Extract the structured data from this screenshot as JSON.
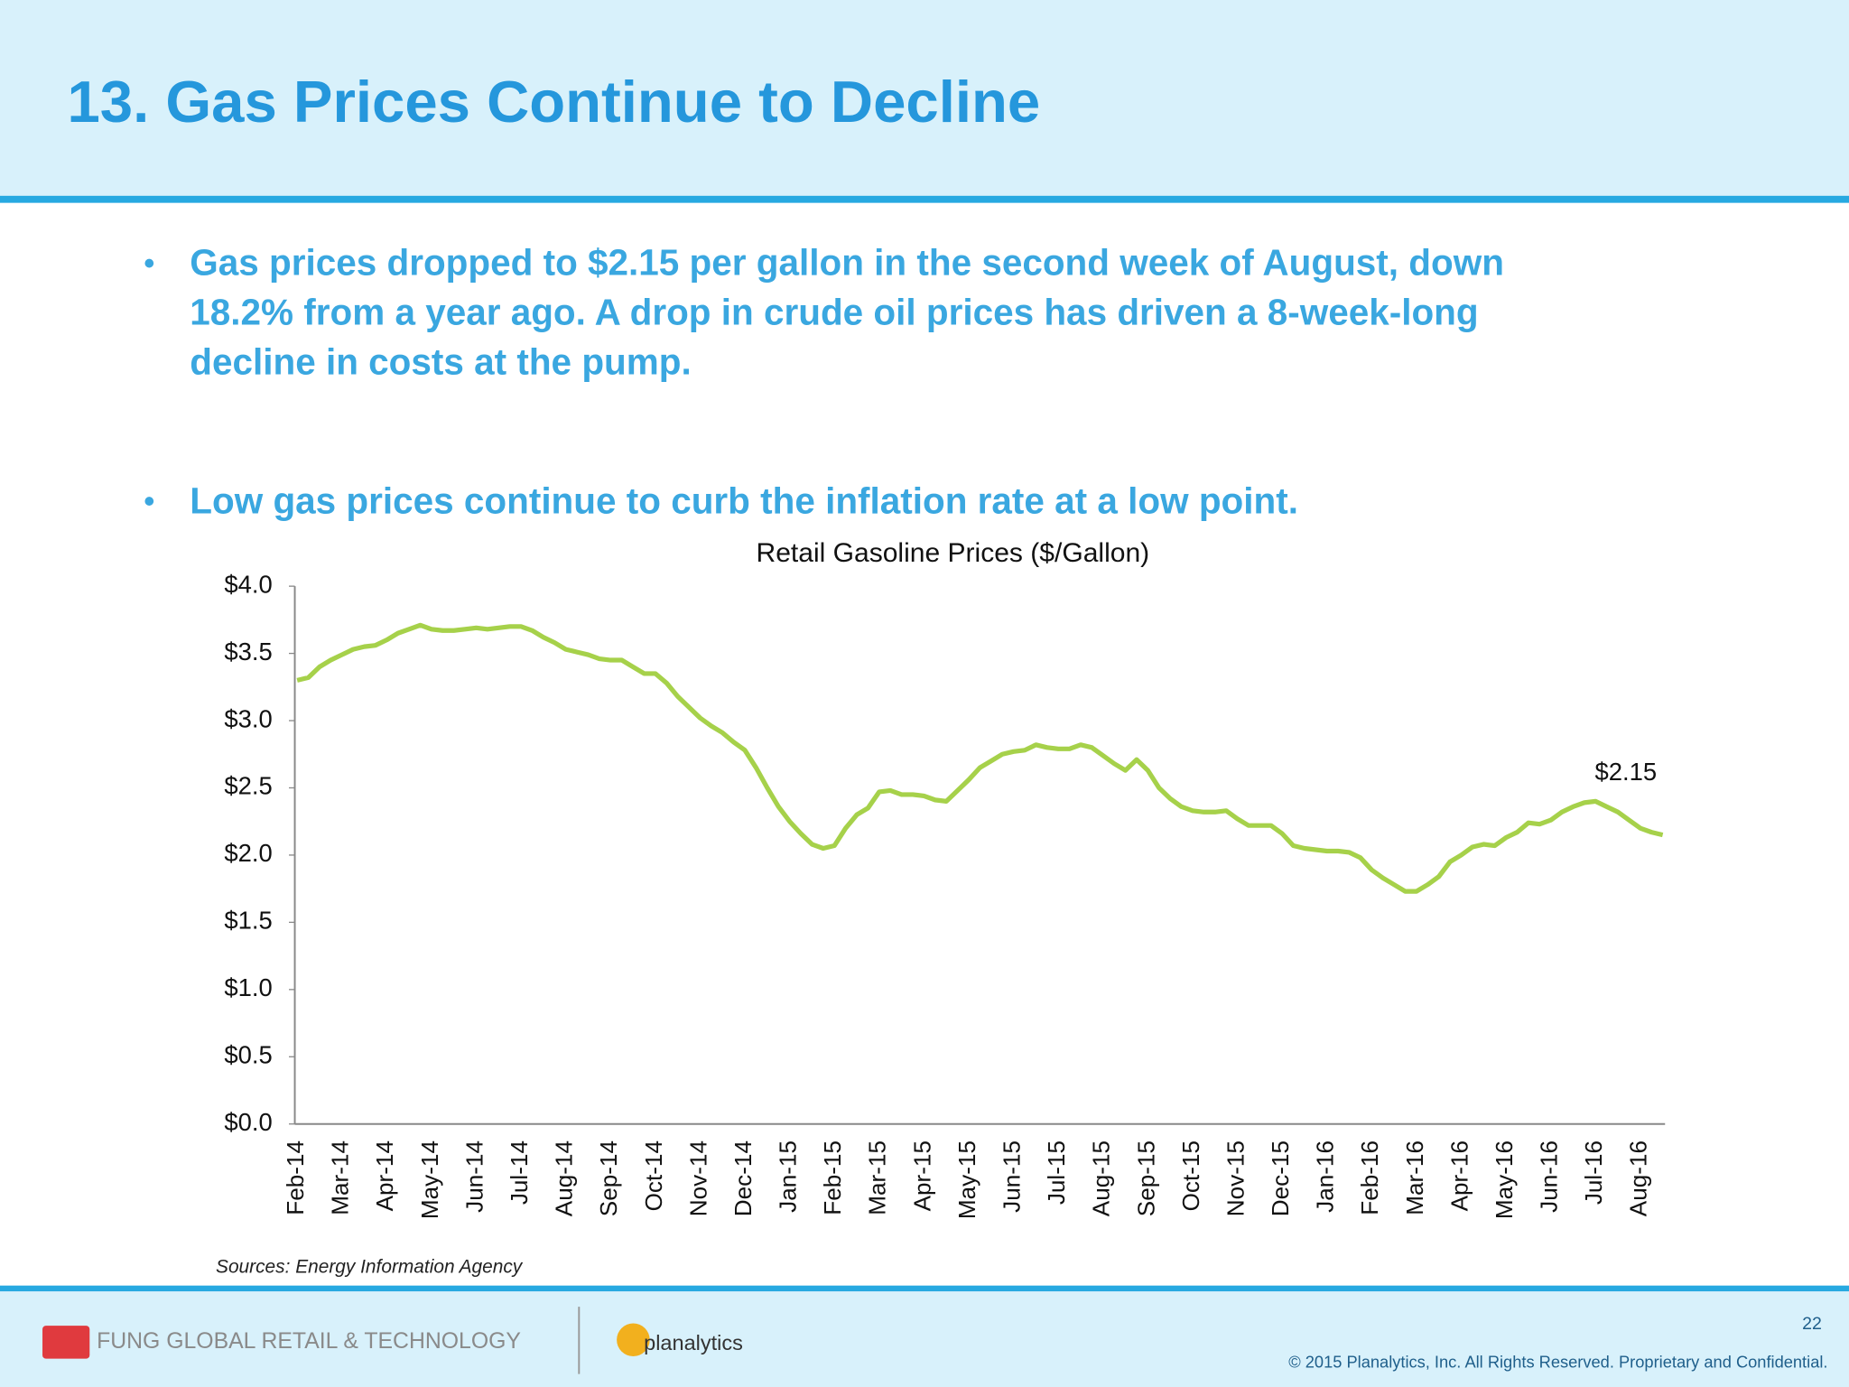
{
  "header": {
    "title": "13. Gas Prices Continue to Decline"
  },
  "bullets": [
    [
      "Gas prices dropped to $2.15 per gallon in the second week of August, down",
      "18.2% from a year ago. A drop in crude oil prices has driven a 8-week-long",
      "decline in costs at the pump."
    ],
    [
      "Low gas prices continue to curb the inflation rate at a low point."
    ]
  ],
  "chart_data": {
    "type": "line",
    "title": "Retail Gasoline Prices ($/Gallon)",
    "color": "#a6d14a",
    "annotation": "$2.15",
    "categories": [
      "Feb-14",
      null,
      null,
      null,
      "Mar-14",
      null,
      null,
      null,
      "Apr-14",
      null,
      null,
      null,
      "May-14",
      null,
      null,
      null,
      "Jun-14",
      null,
      null,
      null,
      "Jul-14",
      null,
      null,
      null,
      "Aug-14",
      null,
      null,
      null,
      "Sep-14",
      null,
      null,
      null,
      "Oct-14",
      null,
      null,
      null,
      "Nov-14",
      null,
      null,
      null,
      "Dec-14",
      null,
      null,
      null,
      "Jan-15",
      null,
      null,
      null,
      "Feb-15",
      null,
      null,
      null,
      "Mar-15",
      null,
      null,
      null,
      "Apr-15",
      null,
      null,
      null,
      "May-15",
      null,
      null,
      null,
      "Jun-15",
      null,
      null,
      null,
      "Jul-15",
      null,
      null,
      null,
      "Aug-15",
      null,
      null,
      null,
      "Sep-15",
      null,
      null,
      null,
      "Oct-15",
      null,
      null,
      null,
      "Nov-15",
      null,
      null,
      null,
      "Dec-15",
      null,
      null,
      null,
      "Jan-16",
      null,
      null,
      null,
      "Feb-16",
      null,
      null,
      null,
      "Mar-16",
      null,
      null,
      null,
      "Apr-16",
      null,
      null,
      null,
      "May-16",
      null,
      null,
      null,
      "Jun-16",
      null,
      null,
      null,
      "Jul-16",
      null,
      null,
      null,
      "Aug-16",
      null,
      null
    ],
    "values": [
      3.3,
      3.32,
      3.4,
      3.45,
      3.49,
      3.53,
      3.55,
      3.56,
      3.6,
      3.65,
      3.68,
      3.71,
      3.68,
      3.67,
      3.67,
      3.68,
      3.69,
      3.68,
      3.69,
      3.7,
      3.7,
      3.67,
      3.62,
      3.58,
      3.53,
      3.51,
      3.49,
      3.46,
      3.45,
      3.45,
      3.4,
      3.35,
      3.35,
      3.28,
      3.18,
      3.1,
      3.02,
      2.96,
      2.91,
      2.84,
      2.78,
      2.65,
      2.5,
      2.36,
      2.25,
      2.16,
      2.08,
      2.05,
      2.07,
      2.2,
      2.3,
      2.35,
      2.47,
      2.48,
      2.45,
      2.45,
      2.44,
      2.41,
      2.4,
      2.48,
      2.56,
      2.65,
      2.7,
      2.75,
      2.77,
      2.78,
      2.82,
      2.8,
      2.79,
      2.79,
      2.82,
      2.8,
      2.74,
      2.68,
      2.63,
      2.71,
      2.63,
      2.5,
      2.42,
      2.36,
      2.33,
      2.32,
      2.32,
      2.33,
      2.27,
      2.22,
      2.22,
      2.22,
      2.16,
      2.07,
      2.05,
      2.04,
      2.03,
      2.03,
      2.02,
      1.98,
      1.89,
      1.83,
      1.78,
      1.73,
      1.73,
      1.78,
      1.84,
      1.95,
      2.0,
      2.06,
      2.08,
      2.07,
      2.13,
      2.17,
      2.24,
      2.23,
      2.26,
      2.32,
      2.36,
      2.39,
      2.4,
      2.36,
      2.32,
      2.26,
      2.2,
      2.17,
      2.15
    ],
    "ylim": [
      0,
      4
    ],
    "yticks": [
      {
        "value": 0,
        "label": "$0.0"
      },
      {
        "value": 0.5,
        "label": "$0.5"
      },
      {
        "value": 1,
        "label": "$1.0"
      },
      {
        "value": 1.5,
        "label": "$1.5"
      },
      {
        "value": 2,
        "label": "$2.0"
      },
      {
        "value": 2.5,
        "label": "$2.5"
      },
      {
        "value": 3,
        "label": "$3.0"
      },
      {
        "value": 3.5,
        "label": "$3.5"
      },
      {
        "value": 4,
        "label": "$4.0"
      }
    ],
    "grid": false
  },
  "source": "Sources: Energy Information Agency",
  "footer": {
    "brand": "FUNG GLOBAL RETAIL & TECHNOLOGY",
    "partner": "planalytics",
    "page": "22",
    "copyright": "© 2015 Planalytics, Inc. All Rights Reserved. Proprietary and Confidential."
  }
}
